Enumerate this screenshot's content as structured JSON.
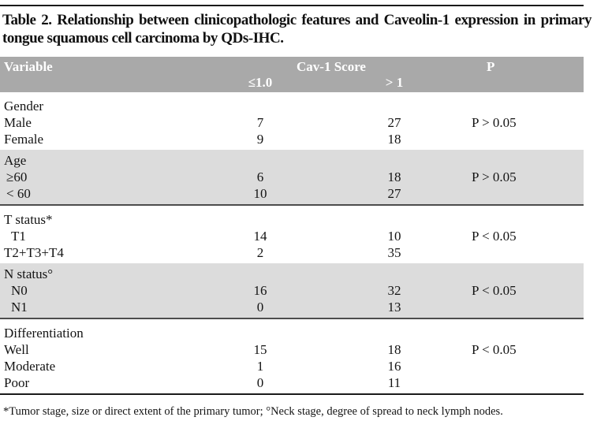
{
  "title": "Table 2. Relationship between clinicopathologic features and Caveolin-1 expression in primary tongue squamous cell carcinoma by QDs-IHC.",
  "table": {
    "header": {
      "variable": "Variable",
      "group": "Cav-1 Score",
      "sub_le": "≤1.0",
      "sub_gt": "> 1",
      "p": "P"
    },
    "sections": [
      {
        "label": "Gender",
        "shaded": false,
        "rows": [
          {
            "label": "Male",
            "indent": 0,
            "le10": "7",
            "gt1": "27",
            "p": "P > 0.05"
          },
          {
            "label": "Female",
            "indent": 0,
            "le10": "9",
            "gt1": "18",
            "p": ""
          }
        ]
      },
      {
        "label": "Age",
        "shaded": true,
        "rows": [
          {
            "label": "≥60",
            "indent": 1,
            "le10": "6",
            "gt1": "18",
            "p": "P > 0.05"
          },
          {
            "label": "< 60",
            "indent": 1,
            "le10": "10",
            "gt1": "27",
            "p": ""
          }
        ]
      },
      {
        "label": "T status*",
        "shaded": false,
        "rows": [
          {
            "label": "T1",
            "indent": 2,
            "le10": "14",
            "gt1": "10",
            "p": "P < 0.05"
          },
          {
            "label": "T2+T3+T4",
            "indent": 0,
            "le10": "2",
            "gt1": "35",
            "p": ""
          }
        ]
      },
      {
        "label": "N status°",
        "shaded": true,
        "rows": [
          {
            "label": "N0",
            "indent": 2,
            "le10": "16",
            "gt1": "32",
            "p": "P < 0.05"
          },
          {
            "label": "N1",
            "indent": 2,
            "le10": "0",
            "gt1": "13",
            "p": ""
          }
        ]
      },
      {
        "label": "Differentiation",
        "shaded": false,
        "rows": [
          {
            "label": "Well",
            "indent": 0,
            "le10": "15",
            "gt1": "18",
            "p": "P < 0.05"
          },
          {
            "label": "Moderate",
            "indent": 0,
            "le10": "1",
            "gt1": "16",
            "p": ""
          },
          {
            "label": "Poor",
            "indent": 0,
            "le10": "0",
            "gt1": "11",
            "p": ""
          }
        ]
      }
    ]
  },
  "footnote": "*Tumor stage, size or direct extent of the primary tumor; °Neck stage, degree of spread to neck lymph nodes.",
  "colors": {
    "header_bg": "#A9A9A9",
    "shaded_bg": "#DCDCDC",
    "rule": "#1a1a1a",
    "band_border": "#4d4d4d"
  }
}
